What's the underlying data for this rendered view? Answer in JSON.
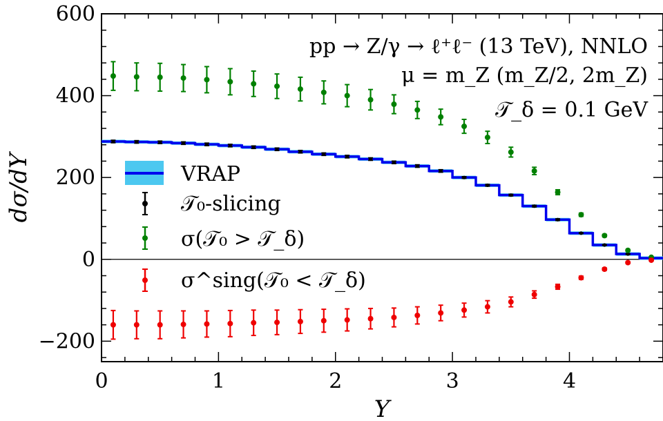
{
  "chart_data": {
    "type": "scatter",
    "xlabel": "Y",
    "ylabel": "dσ/dY",
    "xlim": [
      0,
      4.8
    ],
    "ylim": [
      -250,
      600
    ],
    "x_ticks": [
      "0",
      "1",
      "2",
      "3",
      "4"
    ],
    "y_ticks": [
      "600",
      "400",
      "200",
      "0",
      "−200"
    ],
    "annotations": [
      "pp → Z/γ → ℓ⁺ℓ⁻ (13 TeV), NNLO",
      "μ = m_Z (m_Z/2, 2m_Z)",
      "𝒯_δ = 0.1 GeV"
    ],
    "legend_position": "left",
    "series": [
      {
        "name": "VRAP",
        "style": "step-with-band",
        "color": "#0000ee",
        "band_color": "#4cc8f0",
        "bin_edges": [
          0,
          0.2,
          0.4,
          0.6,
          0.8,
          1.0,
          1.2,
          1.4,
          1.6,
          1.8,
          2.0,
          2.2,
          2.4,
          2.6,
          2.8,
          3.0,
          3.2,
          3.4,
          3.6,
          3.8,
          4.0,
          4.2,
          4.4,
          4.6,
          4.8
        ],
        "values": [
          288,
          287,
          286,
          284,
          281,
          278,
          274,
          269,
          263,
          257,
          251,
          245,
          237,
          228,
          216,
          200,
          181,
          157,
          130,
          97,
          64,
          35,
          13,
          3
        ]
      },
      {
        "name": "𝒯₀-slicing",
        "style": "points-errorbars",
        "color": "#000000",
        "x": [
          0.1,
          0.3,
          0.5,
          0.7,
          0.9,
          1.1,
          1.3,
          1.5,
          1.7,
          1.9,
          2.1,
          2.3,
          2.5,
          2.7,
          2.9,
          3.1,
          3.3,
          3.5,
          3.7,
          3.9,
          4.1,
          4.3,
          4.5,
          4.7
        ],
        "y": [
          288,
          287,
          286,
          284,
          281,
          278,
          274,
          269,
          263,
          257,
          251,
          245,
          237,
          228,
          216,
          200,
          181,
          157,
          130,
          97,
          64,
          35,
          13,
          3
        ],
        "err": [
          3,
          3,
          3,
          3,
          3,
          3,
          3,
          3,
          3,
          3,
          3,
          3,
          3,
          3,
          3,
          2,
          2,
          2,
          2,
          2,
          1,
          1,
          1,
          1
        ]
      },
      {
        "name": "σ(𝒯₀ > 𝒯_δ)",
        "style": "points-errorbars",
        "color": "#008000",
        "x": [
          0.1,
          0.3,
          0.5,
          0.7,
          0.9,
          1.1,
          1.3,
          1.5,
          1.7,
          1.9,
          2.1,
          2.3,
          2.5,
          2.7,
          2.9,
          3.1,
          3.3,
          3.5,
          3.7,
          3.9,
          4.1,
          4.3,
          4.5,
          4.7
        ],
        "y": [
          448,
          446,
          445,
          443,
          439,
          434,
          429,
          423,
          416,
          408,
          400,
          390,
          379,
          365,
          348,
          325,
          298,
          262,
          216,
          164,
          109,
          58,
          22,
          5
        ],
        "err": [
          35,
          34,
          34,
          33,
          32,
          32,
          31,
          30,
          29,
          28,
          27,
          25,
          23,
          21,
          19,
          17,
          15,
          12,
          9,
          6,
          4,
          3,
          2,
          1
        ]
      },
      {
        "name": "σ^sing(𝒯₀ < 𝒯_δ)",
        "style": "points-errorbars",
        "color": "#ee0000",
        "x": [
          0.1,
          0.3,
          0.5,
          0.7,
          0.9,
          1.1,
          1.3,
          1.5,
          1.7,
          1.9,
          2.1,
          2.3,
          2.5,
          2.7,
          2.9,
          3.1,
          3.3,
          3.5,
          3.7,
          3.9,
          4.1,
          4.3,
          4.5,
          4.7
        ],
        "y": [
          -160,
          -160,
          -160,
          -159,
          -158,
          -157,
          -155,
          -154,
          -152,
          -150,
          -148,
          -145,
          -142,
          -137,
          -131,
          -124,
          -116,
          -104,
          -86,
          -67,
          -45,
          -24,
          -8,
          -2
        ],
        "err": [
          35,
          34,
          34,
          33,
          32,
          32,
          31,
          30,
          29,
          28,
          27,
          25,
          23,
          21,
          19,
          17,
          15,
          12,
          9,
          6,
          4,
          3,
          2,
          1
        ]
      }
    ]
  }
}
